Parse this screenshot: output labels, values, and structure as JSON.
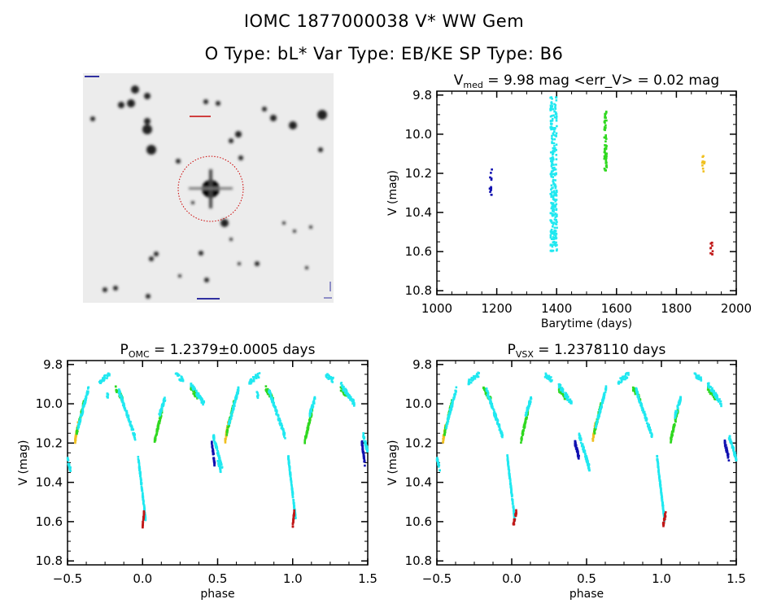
{
  "header": {
    "line1": "IOMC 1877000038    V* WW Gem",
    "line2": "O Type: bL*  Var Type: EB/KE  SP Type: B6"
  },
  "image_panel": {
    "description_type": "sky-cutout",
    "target_marker_color": "#cc0000"
  },
  "colors": {
    "blue": "#1010b0",
    "cyan": "#20e8f0",
    "green": "#30d820",
    "yellow": "#f0c020",
    "red": "#c01818"
  },
  "chart_data": [
    {
      "type": "scatter",
      "title": "V",
      "title_sub": "med",
      "title_rest": " = 9.98 mag <err_V> = 0.02 mag",
      "xlabel": "Barytime (days)",
      "ylabel": "V (mag)",
      "xlim": [
        1000,
        2000
      ],
      "ylim": [
        10.82,
        9.78
      ],
      "y_inverted": true,
      "xticks": [
        "1000",
        "1200",
        "1400",
        "1600",
        "1800",
        "2000"
      ],
      "yticks": [
        "9.8",
        "10.0",
        "10.2",
        "10.4",
        "10.6",
        "10.8"
      ],
      "series": [
        {
          "color": "blue",
          "x": 1180,
          "ymin": 10.18,
          "ymax": 10.32,
          "n": 14
        },
        {
          "color": "cyan",
          "x": 1390,
          "ymin": 9.81,
          "ymax": 10.6,
          "n": 260
        },
        {
          "color": "green",
          "x": 1563,
          "ymin": 9.88,
          "ymax": 10.19,
          "n": 60
        },
        {
          "color": "yellow",
          "x": 1890,
          "ymin": 10.1,
          "ymax": 10.19,
          "n": 10
        },
        {
          "color": "red",
          "x": 1918,
          "ymin": 10.55,
          "ymax": 10.62,
          "n": 10
        }
      ]
    },
    {
      "type": "scatter",
      "title": "P",
      "title_sub": "OMC",
      "title_rest": " = 1.2379±0.0005 days",
      "xlabel": "phase",
      "ylabel": "V (mag)",
      "xlim": [
        -0.5,
        1.5
      ],
      "ylim": [
        10.82,
        9.78
      ],
      "y_inverted": true,
      "xticks": [
        "-0.5",
        "0.0",
        "0.5",
        "1.0",
        "1.5"
      ],
      "yticks": [
        "9.8",
        "10.0",
        "10.2",
        "10.4",
        "10.6",
        "10.8"
      ],
      "segments": [
        {
          "color": "cyan",
          "p": [
            -0.5,
            -0.48
          ],
          "v": [
            10.28,
            10.34
          ]
        },
        {
          "color": "yellow",
          "p": [
            -0.45,
            -0.43
          ],
          "v": [
            10.19,
            10.1
          ]
        },
        {
          "color": "green",
          "p": [
            -0.44,
            -0.39
          ],
          "v": [
            10.15,
            9.99
          ]
        },
        {
          "color": "cyan",
          "p": [
            -0.43,
            -0.36
          ],
          "v": [
            10.12,
            9.92
          ]
        },
        {
          "color": "cyan",
          "p": [
            -0.29,
            -0.22
          ],
          "v": [
            9.89,
            9.85
          ]
        },
        {
          "color": "cyan",
          "p": [
            -0.24,
            -0.23
          ],
          "v": [
            9.95,
            9.96
          ]
        },
        {
          "color": "green",
          "p": [
            -0.18,
            -0.13
          ],
          "v": [
            9.92,
            9.98
          ]
        },
        {
          "color": "cyan",
          "p": [
            -0.16,
            -0.05
          ],
          "v": [
            9.93,
            10.17
          ]
        },
        {
          "color": "cyan",
          "p": [
            -0.03,
            0.02
          ],
          "v": [
            10.27,
            10.59
          ]
        },
        {
          "color": "red",
          "p": [
            0.0,
            0.01
          ],
          "v": [
            10.62,
            10.55
          ]
        },
        {
          "color": "green",
          "p": [
            0.08,
            0.13
          ],
          "v": [
            10.19,
            10.03
          ]
        },
        {
          "color": "cyan",
          "p": [
            0.11,
            0.15
          ],
          "v": [
            10.06,
            9.97
          ]
        },
        {
          "color": "cyan",
          "p": [
            0.22,
            0.27
          ],
          "v": [
            9.85,
            9.88
          ]
        },
        {
          "color": "green",
          "p": [
            0.32,
            0.37
          ],
          "v": [
            9.92,
            9.97
          ]
        },
        {
          "color": "cyan",
          "p": [
            0.32,
            0.41
          ],
          "v": [
            9.9,
            10.0
          ]
        },
        {
          "color": "cyan",
          "p": [
            0.47,
            0.53
          ],
          "v": [
            10.16,
            10.33
          ]
        },
        {
          "color": "blue",
          "p": [
            0.46,
            0.48
          ],
          "v": [
            10.19,
            10.31
          ]
        }
      ]
    },
    {
      "type": "scatter",
      "title": "P",
      "title_sub": "VSX",
      "title_rest": " = 1.2378110 days",
      "xlabel": "phase",
      "ylabel": "V (mag)",
      "xlim": [
        -0.5,
        1.5
      ],
      "ylim": [
        10.82,
        9.78
      ],
      "y_inverted": true,
      "xticks": [
        "-0.5",
        "0.0",
        "0.5",
        "1.0",
        "1.5"
      ],
      "yticks": [
        "9.8",
        "10.0",
        "10.2",
        "10.4",
        "10.6",
        "10.8"
      ],
      "segments": [
        {
          "color": "cyan",
          "p": [
            -0.5,
            -0.48
          ],
          "v": [
            10.28,
            10.34
          ]
        },
        {
          "color": "yellow",
          "p": [
            -0.46,
            -0.44
          ],
          "v": [
            10.19,
            10.1
          ]
        },
        {
          "color": "green",
          "p": [
            -0.45,
            -0.4
          ],
          "v": [
            10.15,
            9.99
          ]
        },
        {
          "color": "cyan",
          "p": [
            -0.44,
            -0.37
          ],
          "v": [
            10.12,
            9.92
          ]
        },
        {
          "color": "cyan",
          "p": [
            -0.29,
            -0.22
          ],
          "v": [
            9.89,
            9.85
          ]
        },
        {
          "color": "green",
          "p": [
            -0.19,
            -0.14
          ],
          "v": [
            9.92,
            9.98
          ]
        },
        {
          "color": "cyan",
          "p": [
            -0.17,
            -0.06
          ],
          "v": [
            9.93,
            10.17
          ]
        },
        {
          "color": "cyan",
          "p": [
            -0.03,
            0.02
          ],
          "v": [
            10.27,
            10.59
          ]
        },
        {
          "color": "red",
          "p": [
            0.01,
            0.03
          ],
          "v": [
            10.62,
            10.55
          ]
        },
        {
          "color": "green",
          "p": [
            0.06,
            0.11
          ],
          "v": [
            10.19,
            10.03
          ]
        },
        {
          "color": "cyan",
          "p": [
            0.09,
            0.13
          ],
          "v": [
            10.06,
            9.97
          ]
        },
        {
          "color": "cyan",
          "p": [
            0.22,
            0.27
          ],
          "v": [
            9.85,
            9.88
          ]
        },
        {
          "color": "green",
          "p": [
            0.31,
            0.36
          ],
          "v": [
            9.92,
            9.97
          ]
        },
        {
          "color": "cyan",
          "p": [
            0.31,
            0.4
          ],
          "v": [
            9.9,
            10.0
          ]
        },
        {
          "color": "cyan",
          "p": [
            0.45,
            0.52
          ],
          "v": [
            10.16,
            10.33
          ]
        },
        {
          "color": "blue",
          "p": [
            0.42,
            0.45
          ],
          "v": [
            10.19,
            10.28
          ]
        }
      ]
    }
  ]
}
